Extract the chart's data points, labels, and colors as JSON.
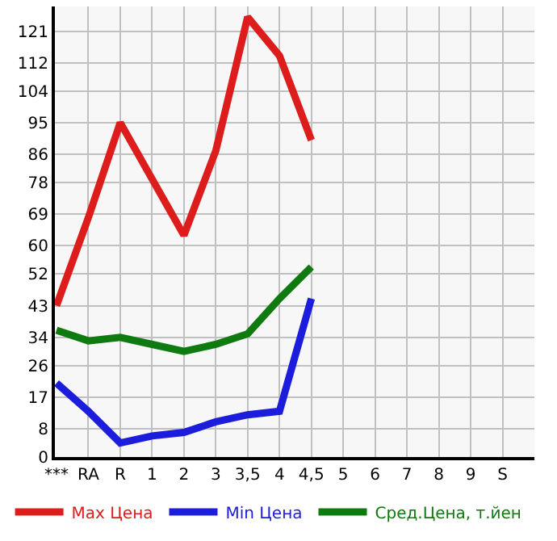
{
  "chart_data": {
    "type": "line",
    "categories": [
      "***",
      "RA",
      "R",
      "1",
      "2",
      "3",
      "3,5",
      "4",
      "4,5",
      "5",
      "6",
      "7",
      "8",
      "9",
      "S"
    ],
    "series": [
      {
        "name": "Max Цена",
        "color": "#dd1c1c",
        "values": [
          43,
          68,
          95,
          79,
          63,
          87,
          125,
          114,
          90,
          null,
          null,
          null,
          null,
          null,
          null
        ]
      },
      {
        "name": "Min Цена",
        "color": "#1c1cdd",
        "values": [
          21,
          13,
          4,
          6,
          7,
          10,
          12,
          13,
          45,
          null,
          null,
          null,
          null,
          null,
          null
        ]
      },
      {
        "name": "Сред.Цена, т.йен",
        "color": "#0f7a0f",
        "values": [
          36,
          33,
          34,
          32,
          30,
          32,
          35,
          45,
          54,
          null,
          null,
          null,
          null,
          null,
          null
        ]
      }
    ],
    "ylim": [
      0,
      128
    ],
    "yticks": [
      0,
      8,
      17,
      26,
      34,
      43,
      52,
      60,
      69,
      78,
      86,
      95,
      104,
      112,
      121
    ],
    "grid": true,
    "legend": "bottom",
    "marker": "none",
    "line_style": "solid"
  }
}
